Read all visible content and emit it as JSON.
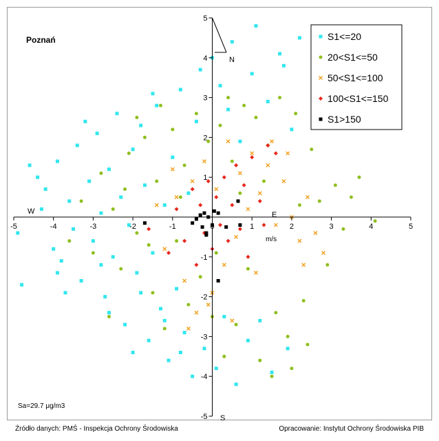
{
  "chart_data": {
    "type": "scatter",
    "title": "Poznań",
    "annotation": "Sa=29.7 μg/m3",
    "axis_unit_label": "m/s",
    "compass": {
      "N": "N",
      "S": "S",
      "W": "W",
      "E": "E"
    },
    "xlim": [
      -5,
      5
    ],
    "ylim": [
      -5,
      5
    ],
    "x_ticks": [
      "-5",
      "-4",
      "-3",
      "-2",
      "-1",
      "0",
      "1",
      "2",
      "3",
      "4",
      "5"
    ],
    "y_ticks": [
      "5",
      "4",
      "3",
      "2",
      "1",
      "-1",
      "-2",
      "-3",
      "-4",
      "-5"
    ],
    "grid": false,
    "legend_position": "top-right",
    "series": [
      {
        "name": "S1<=20",
        "color": "#33e6ee",
        "marker": "square",
        "points": [
          [
            -4.6,
            1.3
          ],
          [
            -4.9,
            -0.4
          ],
          [
            -4.8,
            -1.7
          ],
          [
            -4.4,
            1.0
          ],
          [
            -4.2,
            0.7
          ],
          [
            -4.0,
            -0.8
          ],
          [
            -3.9,
            1.4
          ],
          [
            -3.8,
            -1.1
          ],
          [
            -3.6,
            0.4
          ],
          [
            -3.5,
            -0.3
          ],
          [
            -3.4,
            1.8
          ],
          [
            -3.3,
            -1.6
          ],
          [
            -3.1,
            0.9
          ],
          [
            -3.0,
            -0.6
          ],
          [
            -2.9,
            2.1
          ],
          [
            -2.8,
            0.1
          ],
          [
            -2.7,
            -2.0
          ],
          [
            -2.6,
            1.2
          ],
          [
            -2.5,
            -1.0
          ],
          [
            -2.4,
            2.6
          ],
          [
            -2.3,
            0.5
          ],
          [
            -2.2,
            -2.7
          ],
          [
            -2.1,
            -0.2
          ],
          [
            -2.0,
            1.7
          ],
          [
            -1.9,
            -1.4
          ],
          [
            -1.8,
            2.3
          ],
          [
            -1.7,
            0.8
          ],
          [
            -1.6,
            -3.1
          ],
          [
            -1.5,
            -0.9
          ],
          [
            -1.4,
            2.8
          ],
          [
            -1.3,
            -2.3
          ],
          [
            -1.2,
            0.3
          ],
          [
            -1.1,
            -3.6
          ],
          [
            -1.0,
            1.5
          ],
          [
            -0.9,
            -1.8
          ],
          [
            -0.8,
            3.2
          ],
          [
            -0.7,
            -2.9
          ],
          [
            -0.6,
            0.6
          ],
          [
            -0.5,
            -4.0
          ],
          [
            -0.4,
            2.4
          ],
          [
            -0.3,
            3.7
          ],
          [
            -0.2,
            -3.3
          ],
          [
            0.0,
            4.0
          ],
          [
            0.1,
            -3.8
          ],
          [
            0.2,
            3.3
          ],
          [
            0.3,
            -2.5
          ],
          [
            0.4,
            2.7
          ],
          [
            0.5,
            4.4
          ],
          [
            0.6,
            -4.2
          ],
          [
            0.7,
            1.9
          ],
          [
            0.9,
            -3.1
          ],
          [
            1.0,
            3.6
          ],
          [
            1.1,
            4.8
          ],
          [
            1.2,
            -2.6
          ],
          [
            1.4,
            2.9
          ],
          [
            1.5,
            -3.9
          ],
          [
            1.7,
            4.1
          ],
          [
            1.8,
            3.8
          ],
          [
            1.9,
            -3.3
          ],
          [
            2.0,
            2.2
          ],
          [
            2.2,
            4.5
          ],
          [
            -3.7,
            -1.9
          ],
          [
            -3.2,
            2.4
          ],
          [
            -2.6,
            -2.4
          ],
          [
            -2.0,
            -3.4
          ],
          [
            -1.5,
            3.1
          ],
          [
            -4.3,
            0.2
          ],
          [
            -3.9,
            -1.4
          ],
          [
            -2.8,
            -1.2
          ],
          [
            -1.8,
            -1.9
          ],
          [
            -1.2,
            -2.6
          ],
          [
            -0.8,
            -3.4
          ]
        ]
      },
      {
        "name": "20<S1<=50",
        "color": "#8fbf1d",
        "marker": "circle",
        "points": [
          [
            -3.3,
            0.4
          ],
          [
            -3.0,
            -0.9
          ],
          [
            -2.8,
            1.1
          ],
          [
            -2.5,
            0.2
          ],
          [
            -2.3,
            -1.3
          ],
          [
            -2.1,
            1.6
          ],
          [
            -1.9,
            -0.4
          ],
          [
            -1.7,
            2.0
          ],
          [
            -1.5,
            -1.9
          ],
          [
            -1.4,
            0.9
          ],
          [
            -1.2,
            -2.8
          ],
          [
            -1.0,
            2.2
          ],
          [
            -0.9,
            -0.6
          ],
          [
            -0.7,
            1.3
          ],
          [
            -0.6,
            -2.2
          ],
          [
            -0.4,
            2.6
          ],
          [
            -0.3,
            -1.5
          ],
          [
            -0.1,
            1.9
          ],
          [
            0.0,
            -2.5
          ],
          [
            0.2,
            2.3
          ],
          [
            0.3,
            -3.5
          ],
          [
            0.5,
            1.4
          ],
          [
            0.6,
            -2.7
          ],
          [
            0.8,
            2.8
          ],
          [
            0.9,
            -1.3
          ],
          [
            1.1,
            2.5
          ],
          [
            1.2,
            -3.6
          ],
          [
            1.4,
            1.8
          ],
          [
            1.6,
            -2.4
          ],
          [
            1.7,
            3.0
          ],
          [
            1.9,
            -3.0
          ],
          [
            2.1,
            2.6
          ],
          [
            2.3,
            -2.1
          ],
          [
            2.5,
            1.7
          ],
          [
            2.7,
            0.4
          ],
          [
            2.9,
            -1.2
          ],
          [
            3.1,
            0.8
          ],
          [
            3.3,
            -0.3
          ],
          [
            3.5,
            0.5
          ],
          [
            3.7,
            1.0
          ],
          [
            4.1,
            -0.1
          ],
          [
            -2.6,
            -2.5
          ],
          [
            -1.9,
            2.5
          ],
          [
            -1.3,
            2.8
          ],
          [
            0.4,
            3.0
          ],
          [
            1.5,
            -4.0
          ],
          [
            2.0,
            -3.8
          ],
          [
            2.4,
            -3.2
          ],
          [
            -3.6,
            -0.6
          ],
          [
            -2.2,
            0.7
          ],
          [
            -0.8,
            0.5
          ],
          [
            0.7,
            0.6
          ],
          [
            1.3,
            0.9
          ],
          [
            2.2,
            0.3
          ],
          [
            -1.6,
            -0.7
          ],
          [
            0.1,
            -0.9
          ]
        ]
      },
      {
        "name": "50<S1<=100",
        "color": "#f0a01c",
        "marker": "x",
        "points": [
          [
            -1.2,
            -0.8
          ],
          [
            -0.9,
            0.5
          ],
          [
            -0.7,
            -1.6
          ],
          [
            -0.5,
            0.9
          ],
          [
            -0.4,
            -2.4
          ],
          [
            -0.2,
            1.4
          ],
          [
            0.0,
            -1.9
          ],
          [
            0.1,
            0.7
          ],
          [
            0.3,
            -1.2
          ],
          [
            0.4,
            1.9
          ],
          [
            0.6,
            -0.5
          ],
          [
            0.7,
            1.1
          ],
          [
            0.9,
            0.2
          ],
          [
            1.0,
            1.6
          ],
          [
            1.2,
            0.6
          ],
          [
            1.4,
            1.3
          ],
          [
            1.6,
            -0.2
          ],
          [
            1.8,
            0.9
          ],
          [
            2.0,
            0.0
          ],
          [
            2.2,
            -0.6
          ],
          [
            2.4,
            0.5
          ],
          [
            2.6,
            -0.4
          ],
          [
            2.8,
            -0.9
          ],
          [
            -0.6,
            -2.8
          ],
          [
            -0.1,
            -2.2
          ],
          [
            0.5,
            -2.6
          ],
          [
            1.1,
            -1.4
          ],
          [
            1.5,
            1.9
          ],
          [
            1.9,
            1.6
          ],
          [
            -1.4,
            0.3
          ],
          [
            -1.0,
            1.2
          ],
          [
            2.3,
            -1.2
          ]
        ]
      },
      {
        "name": "100<S1<=150",
        "color": "#e8261c",
        "marker": "diamond",
        "points": [
          [
            -0.9,
            0.2
          ],
          [
            -0.7,
            -0.6
          ],
          [
            -0.5,
            0.7
          ],
          [
            -0.4,
            -1.2
          ],
          [
            -0.3,
            0.3
          ],
          [
            -0.2,
            -0.4
          ],
          [
            -0.1,
            0.9
          ],
          [
            0.0,
            -0.8
          ],
          [
            0.1,
            0.5
          ],
          [
            0.2,
            -0.2
          ],
          [
            0.3,
            1.0
          ],
          [
            0.4,
            -0.6
          ],
          [
            0.5,
            0.3
          ],
          [
            0.6,
            1.3
          ],
          [
            0.7,
            -0.3
          ],
          [
            0.8,
            0.8
          ],
          [
            1.0,
            1.5
          ],
          [
            1.2,
            0.4
          ],
          [
            1.4,
            1.8
          ],
          [
            1.6,
            1.6
          ],
          [
            -1.6,
            -0.3
          ],
          [
            -1.1,
            -0.9
          ],
          [
            0.9,
            -1.0
          ],
          [
            1.3,
            -0.2
          ]
        ]
      },
      {
        "name": "S1>150",
        "color": "#000000",
        "marker": "square",
        "points": [
          [
            -1.7,
            -0.15
          ],
          [
            -0.5,
            -0.15
          ],
          [
            -0.4,
            -0.05
          ],
          [
            -0.3,
            0.05
          ],
          [
            -0.25,
            -0.25
          ],
          [
            -0.2,
            0.1
          ],
          [
            -0.15,
            -0.4
          ],
          [
            -0.1,
            0.0
          ],
          [
            0.0,
            -0.2
          ],
          [
            0.05,
            0.15
          ],
          [
            0.15,
            0.1
          ],
          [
            0.35,
            -0.25
          ],
          [
            0.65,
            0.4
          ],
          [
            0.7,
            -0.2
          ],
          [
            -0.15,
            -0.45
          ],
          [
            0.15,
            -1.6
          ]
        ]
      }
    ]
  },
  "footer": {
    "source": "Źródło danych: PMŚ - Inspekcja Ochrony Środowiska",
    "credit": "Opracowanie: Instytut Ochrony Środowiska PIB"
  }
}
